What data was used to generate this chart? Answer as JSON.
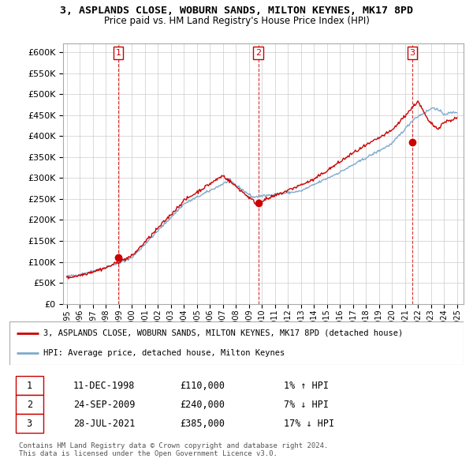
{
  "title": "3, ASPLANDS CLOSE, WOBURN SANDS, MILTON KEYNES, MK17 8PD",
  "subtitle": "Price paid vs. HM Land Registry's House Price Index (HPI)",
  "ylim": [
    0,
    620000
  ],
  "yticks": [
    0,
    50000,
    100000,
    150000,
    200000,
    250000,
    300000,
    350000,
    400000,
    450000,
    500000,
    550000,
    600000
  ],
  "sale_dates": [
    1998.95,
    2009.73,
    2021.57
  ],
  "sale_prices": [
    110000,
    240000,
    385000
  ],
  "sale_labels": [
    "1",
    "2",
    "3"
  ],
  "legend_red": "3, ASPLANDS CLOSE, WOBURN SANDS, MILTON KEYNES, MK17 8PD (detached house)",
  "legend_blue": "HPI: Average price, detached house, Milton Keynes",
  "table_data": [
    [
      "1",
      "11-DEC-1998",
      "£110,000",
      "1% ↑ HPI"
    ],
    [
      "2",
      "24-SEP-2009",
      "£240,000",
      "7% ↓ HPI"
    ],
    [
      "3",
      "28-JUL-2021",
      "£385,000",
      "17% ↓ HPI"
    ]
  ],
  "footer": "Contains HM Land Registry data © Crown copyright and database right 2024.\nThis data is licensed under the Open Government Licence v3.0.",
  "hpi_color": "#7faacc",
  "price_color": "#cc0000",
  "background_color": "#ffffff",
  "grid_color": "#cccccc"
}
